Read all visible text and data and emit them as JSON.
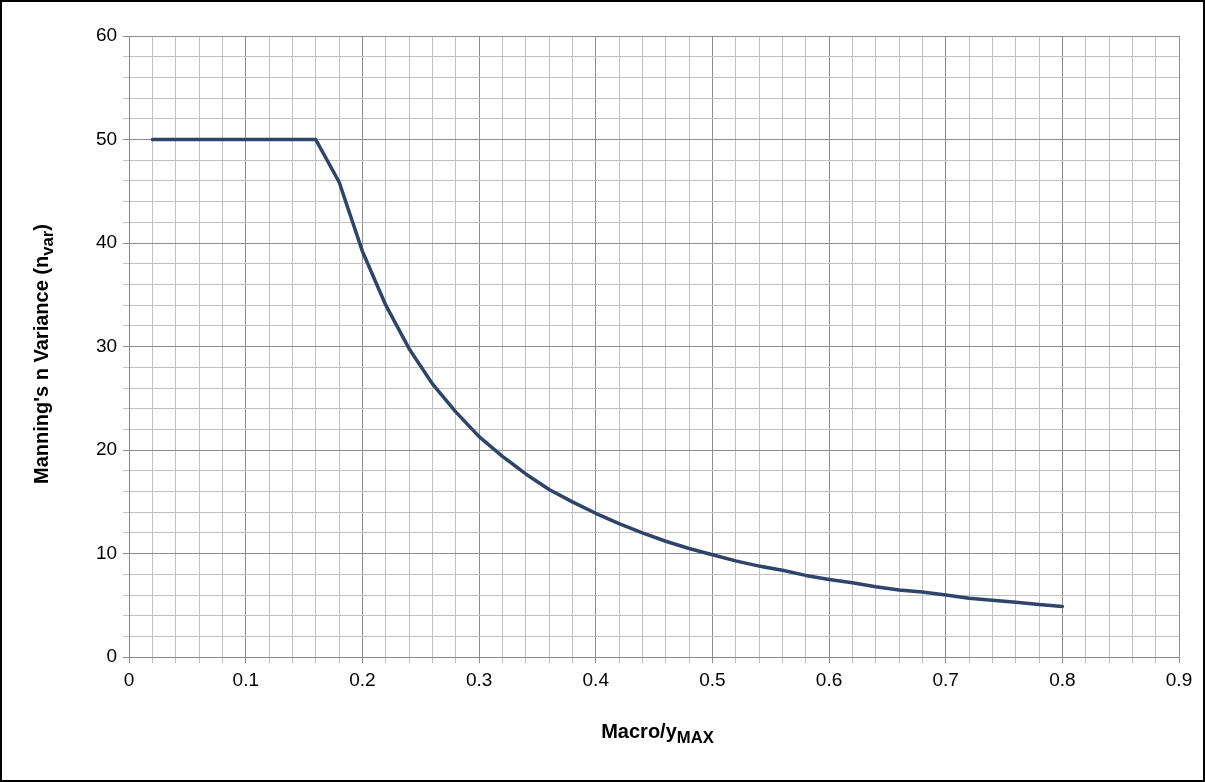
{
  "chart_data": {
    "type": "line",
    "xlabel": "Macro/y$_{MAX}$",
    "ylabel": "Manning's n Variance (n$_{var}$)",
    "x": [
      0.02,
      0.16,
      0.18,
      0.2,
      0.22,
      0.24,
      0.26,
      0.28,
      0.3,
      0.32,
      0.34,
      0.36,
      0.38,
      0.4,
      0.42,
      0.44,
      0.46,
      0.48,
      0.5,
      0.52,
      0.54,
      0.56,
      0.58,
      0.6,
      0.62,
      0.64,
      0.66,
      0.68,
      0.7,
      0.72,
      0.74,
      0.76,
      0.78,
      0.8
    ],
    "series": [
      {
        "color": "#2e4468",
        "values": [
          50,
          50,
          45.9,
          39.2,
          34.0,
          29.8,
          26.4,
          23.7,
          21.3,
          19.4,
          17.7,
          16.2,
          15.0,
          13.9,
          12.9,
          12.0,
          11.2,
          10.5,
          9.9,
          9.3,
          8.8,
          8.4,
          7.9,
          7.5,
          7.2,
          6.8,
          6.5,
          6.3,
          6.0,
          5.7,
          5.5,
          5.3,
          5.1,
          4.9
        ]
      }
    ],
    "xlim": [
      0,
      0.9
    ],
    "xticks": [
      0,
      {
        "value": 0.02,
        "label": null
      },
      {
        "value": 0.04,
        "label": null
      },
      {
        "value": 0.06,
        "label": null
      },
      {
        "value": 0.08,
        "label": null
      },
      0.1,
      {
        "value": 0.12,
        "label": null
      },
      {
        "value": 0.14,
        "label": null
      },
      {
        "value": 0.16,
        "label": null
      },
      {
        "value": 0.18,
        "label": null
      },
      0.2,
      {
        "value": 0.22,
        "label": null
      },
      {
        "value": 0.24,
        "label": null
      },
      {
        "value": 0.26,
        "label": null
      },
      {
        "value": 0.28,
        "label": null
      },
      0.3,
      {
        "value": 0.32,
        "label": null
      },
      {
        "value": 0.34,
        "label": null
      },
      {
        "value": 0.36,
        "label": null
      },
      {
        "value": 0.38,
        "label": null
      },
      0.4,
      {
        "value": 0.42,
        "label": null
      },
      {
        "value": 0.44,
        "label": null
      },
      {
        "value": 0.46,
        "label": null
      },
      {
        "value": 0.48,
        "label": null
      },
      0.5,
      {
        "value": 0.52,
        "label": null
      },
      {
        "value": 0.54,
        "label": null
      },
      {
        "value": 0.56,
        "label": null
      },
      {
        "value": 0.58,
        "label": null
      },
      0.6,
      {
        "value": 0.62,
        "label": null
      },
      {
        "value": 0.64,
        "label": null
      },
      {
        "value": 0.66,
        "label": null
      },
      {
        "value": 0.68,
        "label": null
      },
      0.7,
      {
        "value": 0.72,
        "label": null
      },
      {
        "value": 0.74,
        "label": null
      },
      {
        "value": 0.76,
        "label": null
      },
      {
        "value": 0.78,
        "label": null
      },
      0.8,
      {
        "value": 0.82,
        "label": null
      },
      {
        "value": 0.84,
        "label": null
      },
      {
        "value": 0.86,
        "label": null
      },
      {
        "value": 0.88,
        "label": null
      },
      0.9
    ],
    "ylim": [
      0,
      60
    ],
    "yticks": [
      0,
      {
        "value": 2,
        "label": null
      },
      {
        "value": 4,
        "label": null
      },
      {
        "value": 6,
        "label": null
      },
      {
        "value": 8,
        "label": null
      },
      10,
      {
        "value": 12,
        "label": null
      },
      {
        "value": 14,
        "label": null
      },
      {
        "value": 16,
        "label": null
      },
      {
        "value": 18,
        "label": null
      },
      20,
      {
        "value": 22,
        "label": null
      },
      {
        "value": 24,
        "label": null
      },
      {
        "value": 26,
        "label": null
      },
      {
        "value": 28,
        "label": null
      },
      30,
      {
        "value": 32,
        "label": null
      },
      {
        "value": 34,
        "label": null
      },
      {
        "value": 36,
        "label": null
      },
      {
        "value": 38,
        "label": null
      },
      40,
      {
        "value": 42,
        "label": null
      },
      {
        "value": 44,
        "label": null
      },
      {
        "value": 46,
        "label": null
      },
      {
        "value": 48,
        "label": null
      },
      50,
      {
        "value": 52,
        "label": null
      },
      {
        "value": 54,
        "label": null
      },
      {
        "value": 56,
        "label": null
      },
      {
        "value": 58,
        "label": null
      },
      60
    ],
    "grid": true,
    "legend": false,
    "marker": "none",
    "line_style": "solid"
  }
}
